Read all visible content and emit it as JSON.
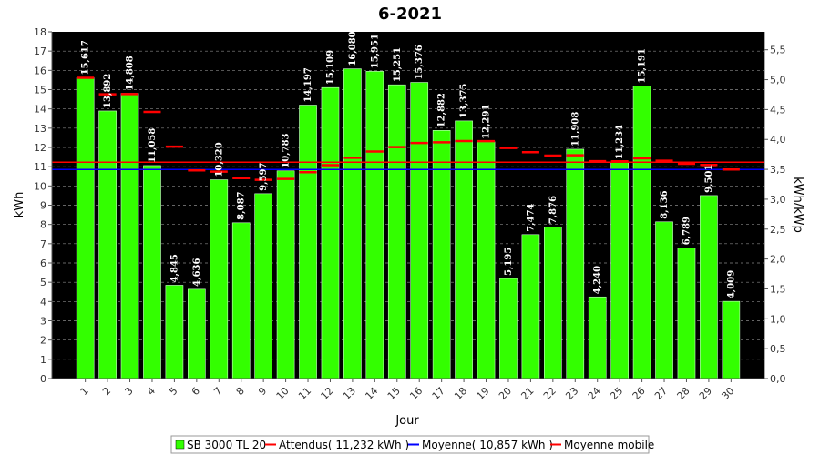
{
  "chart_data": {
    "type": "bar",
    "title": "6-2021",
    "xlabel": "Jour",
    "ylabel": "kWh",
    "y2label": "kWh/kWp",
    "ylim": [
      0,
      18
    ],
    "y2lim": [
      0,
      5.8
    ],
    "yticks": [
      "0",
      "1",
      "2",
      "3",
      "4",
      "5",
      "6",
      "7",
      "8",
      "9",
      "10",
      "11",
      "12",
      "13",
      "14",
      "15",
      "16",
      "17",
      "18"
    ],
    "y2ticks": [
      "0,0",
      "0,5",
      "1,0",
      "1,5",
      "2,0",
      "2,5",
      "3,0",
      "3,5",
      "4,0",
      "4,5",
      "5,0",
      "5,5"
    ],
    "grid": true,
    "legend_position": "bottom",
    "categories": [
      "1",
      "2",
      "3",
      "4",
      "5",
      "6",
      "7",
      "8",
      "9",
      "10",
      "11",
      "12",
      "13",
      "14",
      "15",
      "16",
      "17",
      "18",
      "19",
      "20",
      "21",
      "22",
      "23",
      "24",
      "25",
      "26",
      "27",
      "28",
      "29",
      "30"
    ],
    "series": [
      {
        "name": "SB 3000 TL 20",
        "color": "#33ff00",
        "values": [
          15.617,
          13.892,
          14.808,
          11.058,
          4.845,
          4.636,
          10.32,
          8.087,
          9.597,
          10.783,
          14.197,
          15.109,
          16.08,
          15.951,
          15.251,
          15.376,
          12.882,
          13.375,
          12.291,
          5.195,
          7.474,
          7.876,
          11.908,
          4.24,
          11.234,
          15.191,
          8.136,
          6.789,
          9.501,
          4.009
        ],
        "labels": [
          "15,617",
          "13,892",
          "14,808",
          "11,058",
          "4,845",
          "4,636",
          "10,320",
          "8,087",
          "9,597",
          "10,783",
          "14,197",
          "15,109",
          "16,080",
          "15,951",
          "15,251",
          "15,376",
          "12,882",
          "13,375",
          "12,291",
          "5,195",
          "7,474",
          "7,876",
          "11,908",
          "4,240",
          "11,234",
          "15,191",
          "8,136",
          "6,789",
          "9,501",
          "4,009"
        ]
      },
      {
        "name": "Attendus( 11,232 kWh )",
        "color": "#ff0000",
        "value": 11.232
      },
      {
        "name": "Moyenne( 10,857 kWh )",
        "color": "#0000ff",
        "value": 10.857
      },
      {
        "name": "Moyenne mobile",
        "color": "#ff0000",
        "values": [
          15.617,
          14.755,
          14.772,
          13.844,
          12.044,
          10.81,
          10.74,
          10.408,
          10.318,
          10.365,
          10.714,
          11.08,
          11.465,
          11.786,
          12.018,
          12.228,
          12.267,
          12.328,
          12.325,
          11.968,
          11.754,
          11.577,
          11.591,
          11.284,
          11.282,
          11.432,
          11.31,
          11.149,
          11.091,
          10.857
        ]
      }
    ]
  }
}
